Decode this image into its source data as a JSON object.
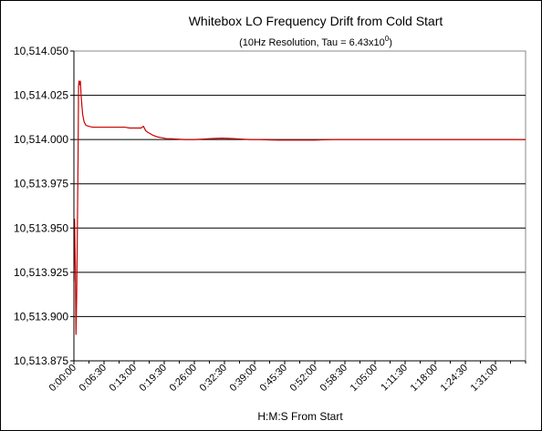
{
  "chart_data": {
    "type": "line",
    "title": "Whitebox LO Frequency Drift from Cold Start",
    "subtitle": {
      "prefix": "(10Hz Resolution, Tau = 6.43x10",
      "superscript": "0",
      "suffix": ")"
    },
    "xlabel": "H:M:S From Start",
    "ylabel": "",
    "x_tick_labels": [
      "0:00:00",
      "0:06:30",
      "0:13:00",
      "0:19:30",
      "0:26:00",
      "0:32:30",
      "0:39:00",
      "0:45:30",
      "0:52:00",
      "0:58:30",
      "1:05:00",
      "1:11:30",
      "1:18:00",
      "1:24:30",
      "1:31:00"
    ],
    "x_tick_minutes": [
      0,
      6.5,
      13,
      19.5,
      26,
      32.5,
      39,
      45.5,
      52,
      58.5,
      65,
      71.5,
      78,
      84.5,
      91
    ],
    "xlim_minutes": [
      0,
      97.5
    ],
    "y_tick_labels": [
      "10,514.050",
      "10,514.025",
      "10,514.000",
      "10,513.975",
      "10,513.950",
      "10,513.925",
      "10,513.900",
      "10,513.875"
    ],
    "ylim": [
      10513.875,
      10514.05
    ],
    "grid": "horizontal",
    "legend": "none",
    "colors": {
      "series": "#cc0000",
      "grid": "#000000",
      "plot_background": "#ffffff"
    },
    "series": [
      {
        "x_minutes": [
          0,
          0.15,
          0.3,
          0.45,
          0.6,
          0.75,
          0.9,
          1.0,
          1.1,
          1.25,
          1.4,
          1.55,
          1.7,
          1.9,
          2.2,
          2.6,
          3.2,
          4,
          5,
          6,
          7,
          8,
          9,
          10,
          11,
          12,
          13,
          14,
          14.5,
          15,
          15.5,
          16,
          17,
          18,
          19,
          20,
          21,
          22,
          24,
          26,
          28,
          30,
          32,
          34,
          36,
          38,
          40,
          42,
          44,
          46,
          48,
          50,
          52,
          54,
          56,
          60,
          65,
          70,
          75,
          80,
          85,
          90,
          95,
          97.5
        ],
        "y": [
          10513.92,
          10513.955,
          10513.93,
          10513.89,
          10513.912,
          10513.95,
          10513.99,
          10514.03,
          10514.033,
          10514.031,
          10514.033,
          10514.025,
          10514.02,
          10514.014,
          10514.01,
          10514.008,
          10514.0075,
          10514.007,
          10514.007,
          10514.007,
          10514.007,
          10514.007,
          10514.007,
          10514.007,
          10514.007,
          10514.0065,
          10514.0065,
          10514.0065,
          10514.0065,
          10514.0075,
          10514.005,
          10514.004,
          10514.0025,
          10514.0015,
          10514.001,
          10514.0005,
          10514.0005,
          10514.0003,
          10514.0,
          10514.0,
          10514.0003,
          10514.0006,
          10514.0008,
          10514.0006,
          10514.0003,
          10514.0,
          10514.0,
          10513.9998,
          10513.9997,
          10513.9997,
          10513.9997,
          10513.9997,
          10513.9997,
          10513.9999,
          10514.0,
          10514.0,
          10514.0,
          10514.0,
          10514.0,
          10514.0,
          10514.0,
          10514.0,
          10514.0,
          10514.0
        ]
      }
    ]
  }
}
